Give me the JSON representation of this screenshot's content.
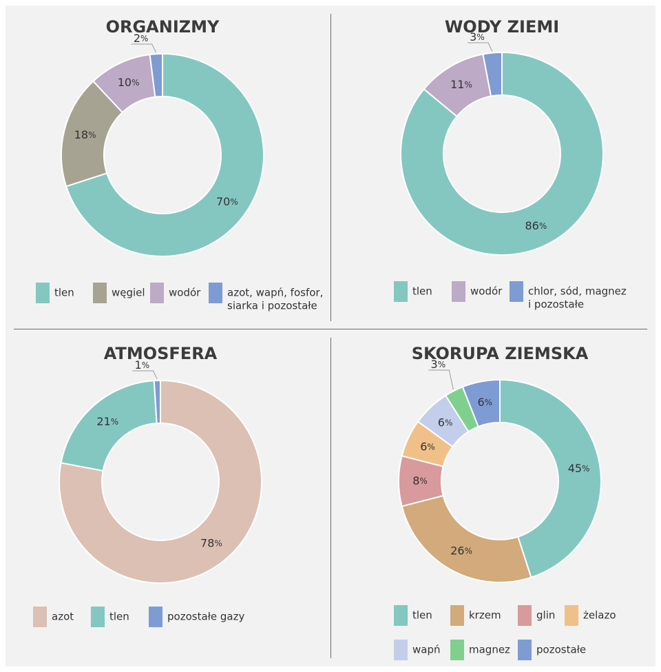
{
  "colors": {
    "tlen": "#84c7c1",
    "wegiel": "#a6a392",
    "wodor": "#bdaac6",
    "blue": "#7f9bd3",
    "azot": "#dcc0b3",
    "krzem": "#d2aa7b",
    "glin": "#d89a9c",
    "zelazo": "#f1c088",
    "wapn": "#c3cfea",
    "magnez": "#7fd08f"
  },
  "chart_data": [
    {
      "type": "pie",
      "title": "ORGANIZMY",
      "categories": [
        "tlen",
        "węgiel",
        "wodór",
        "azot, wapń, fosfor, siarka i pozostałe"
      ],
      "values": [
        70,
        18,
        10,
        2
      ],
      "labels": [
        "70",
        "18",
        "10",
        "2"
      ],
      "legend_lines": [
        [
          "tlen"
        ],
        [
          "węgiel"
        ],
        [
          "wodór"
        ],
        [
          "azot, wapń, fosfor,",
          "siarka i pozostałe"
        ]
      ]
    },
    {
      "type": "pie",
      "title": "WODY ZIEMI",
      "categories": [
        "tlen",
        "wodór",
        "chlor, sód, magnez i pozostałe"
      ],
      "values": [
        86,
        11,
        3
      ],
      "labels": [
        "86",
        "11",
        "3"
      ],
      "legend_lines": [
        [
          "tlen"
        ],
        [
          "wodór"
        ],
        [
          "chlor, sód, magnez",
          "i pozostałe"
        ]
      ]
    },
    {
      "type": "pie",
      "title": "ATMOSFERA",
      "categories": [
        "azot",
        "tlen",
        "pozostałe gazy"
      ],
      "values": [
        78,
        21,
        1
      ],
      "labels": [
        "78",
        "21",
        "1"
      ],
      "legend_lines": [
        [
          "azot"
        ],
        [
          "tlen"
        ],
        [
          "pozostałe gazy"
        ]
      ]
    },
    {
      "type": "pie",
      "title": "SKORUPA ZIEMSKA",
      "categories": [
        "tlen",
        "krzem",
        "glin",
        "żelazo",
        "wapń",
        "magnez",
        "pozostałe"
      ],
      "values": [
        45,
        26,
        8,
        6,
        6,
        3,
        6
      ],
      "labels": [
        "45",
        "26",
        "8",
        "6",
        "6",
        "3",
        "6"
      ],
      "legend_lines": [
        [
          "tlen"
        ],
        [
          "krzem"
        ],
        [
          "glin"
        ],
        [
          "żelazo"
        ],
        [
          "wapń"
        ],
        [
          "magnez"
        ],
        [
          "pozostałe"
        ]
      ]
    }
  ],
  "percent_sign": "%"
}
